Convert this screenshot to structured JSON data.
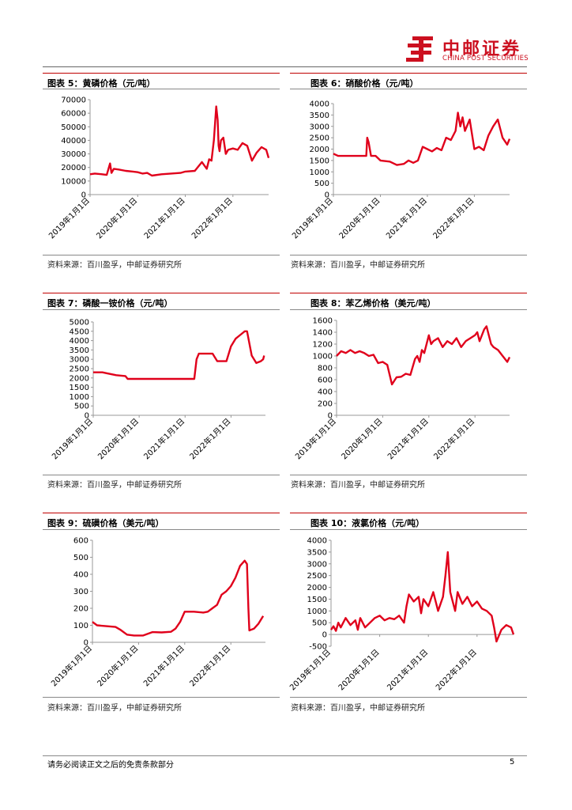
{
  "header": {
    "brand_cn": "中邮证券",
    "brand_en": "CHINA POST SECURITIES"
  },
  "panels": [
    {
      "title": "图表 5：黄磷价格（元/吨）",
      "source": "资料来源：百川盈孚，中邮证券研究所"
    },
    {
      "title": "图表 6：硝酸价格（元/吨）",
      "source": "资料来源：百川盈孚，中邮证券研究所"
    },
    {
      "title": "图表 7：磷酸一铵价格（元/吨）",
      "source": "资料来源：百川盈孚，中邮证券研究所"
    },
    {
      "title": "图表 8：苯乙烯价格（美元/吨）",
      "source": "资料来源：百川盈孚，中邮证券研究所"
    },
    {
      "title": "图表 9：硫磺价格（美元/吨）",
      "source": "资料来源：百川盈孚，中邮证券研究所"
    },
    {
      "title": "图表 10：液氯价格（元/吨）",
      "source": "资料来源：百川盈孚，中邮证券研究所"
    }
  ],
  "chart_data": [
    {
      "type": "line",
      "title": "",
      "color": "#e0001b",
      "ylim": [
        0,
        70000
      ],
      "yticks": [
        0,
        10000,
        20000,
        30000,
        40000,
        50000,
        60000,
        70000
      ],
      "xticks": [
        "2019年1月1日",
        "2020年1月1日",
        "2021年1月1日",
        "2022年1月1日"
      ],
      "xlim": [
        2019.0,
        2022.75
      ],
      "x": [
        2019.0,
        2019.1,
        2019.25,
        2019.35,
        2019.42,
        2019.45,
        2019.5,
        2019.6,
        2019.75,
        2019.9,
        2020.0,
        2020.1,
        2020.2,
        2020.3,
        2020.5,
        2020.7,
        2020.9,
        2021.0,
        2021.2,
        2021.35,
        2021.45,
        2021.5,
        2021.55,
        2021.6,
        2021.65,
        2021.68,
        2021.7,
        2021.72,
        2021.75,
        2021.8,
        2021.85,
        2021.9,
        2022.0,
        2022.1,
        2022.2,
        2022.3,
        2022.4,
        2022.5,
        2022.6,
        2022.7,
        2022.75
      ],
      "values": [
        15000,
        15500,
        15000,
        14500,
        23000,
        16000,
        19000,
        18500,
        17500,
        17000,
        16500,
        15500,
        16000,
        14000,
        15000,
        15500,
        16000,
        17000,
        17500,
        24000,
        19000,
        26000,
        25000,
        40000,
        65000,
        55000,
        36000,
        32000,
        40000,
        42000,
        30000,
        33000,
        34000,
        33000,
        38000,
        36000,
        25000,
        31000,
        35000,
        33000,
        27000
      ]
    },
    {
      "type": "line",
      "title": "",
      "color": "#e0001b",
      "ylim": [
        0,
        4000
      ],
      "yticks": [
        0,
        500,
        1000,
        1500,
        2000,
        2500,
        3000,
        3500,
        4000
      ],
      "xticks": [
        "2019年1月1日",
        "2020年1月1日",
        "2021年1月1日",
        "2022年1月1日"
      ],
      "xlim": [
        2019.0,
        2022.75
      ],
      "x": [
        2019.0,
        2019.1,
        2019.3,
        2019.5,
        2019.7,
        2019.72,
        2019.75,
        2019.8,
        2019.9,
        2020.0,
        2020.2,
        2020.35,
        2020.5,
        2020.6,
        2020.7,
        2020.8,
        2020.9,
        2021.0,
        2021.1,
        2021.2,
        2021.3,
        2021.4,
        2021.5,
        2021.6,
        2021.65,
        2021.7,
        2021.75,
        2021.8,
        2021.9,
        2022.0,
        2022.1,
        2022.2,
        2022.3,
        2022.4,
        2022.5,
        2022.6,
        2022.7,
        2022.75
      ],
      "values": [
        1800,
        1700,
        1700,
        1700,
        1700,
        2500,
        2300,
        1700,
        1700,
        1500,
        1450,
        1300,
        1350,
        1500,
        1400,
        1500,
        2100,
        2000,
        1900,
        2050,
        1950,
        2500,
        2400,
        2800,
        3600,
        3000,
        3400,
        2800,
        3300,
        2000,
        2100,
        1950,
        2600,
        3000,
        3300,
        2500,
        2200,
        2450
      ]
    },
    {
      "type": "line",
      "title": "",
      "color": "#e0001b",
      "ylim": [
        0,
        5000
      ],
      "yticks": [
        0,
        500,
        1000,
        1500,
        2000,
        2500,
        3000,
        3500,
        4000,
        4500,
        5000
      ],
      "xticks": [
        "2019年1月1日",
        "2020年1月1日",
        "2021年1月1日",
        "2022年1月1日"
      ],
      "xlim": [
        2019.0,
        2022.75
      ],
      "x": [
        2019.0,
        2019.2,
        2019.3,
        2019.5,
        2019.7,
        2019.75,
        2019.9,
        2020.0,
        2020.5,
        2020.9,
        2021.0,
        2021.1,
        2021.2,
        2021.25,
        2021.3,
        2021.6,
        2021.7,
        2021.9,
        2022.0,
        2022.1,
        2022.2,
        2022.3,
        2022.35,
        2022.45,
        2022.55,
        2022.65,
        2022.7,
        2022.72
      ],
      "values": [
        2300,
        2300,
        2250,
        2150,
        2100,
        1950,
        1950,
        1950,
        1950,
        1950,
        1950,
        1950,
        1950,
        3000,
        3300,
        3300,
        2900,
        2900,
        3700,
        4100,
        4300,
        4500,
        4500,
        3200,
        2800,
        2900,
        3000,
        3200
      ]
    },
    {
      "type": "line",
      "title": "",
      "color": "#e0001b",
      "ylim": [
        0,
        1600
      ],
      "yticks": [
        0,
        200,
        400,
        600,
        800,
        1000,
        1200,
        1400,
        1600
      ],
      "xticks": [
        "2019年1月1日",
        "2020年1月1日",
        "2021年1月1日",
        "2022年1月1日"
      ],
      "xlim": [
        2019.0,
        2022.75
      ],
      "x": [
        2019.0,
        2019.1,
        2019.2,
        2019.3,
        2019.4,
        2019.5,
        2019.6,
        2019.7,
        2019.8,
        2019.9,
        2020.0,
        2020.1,
        2020.2,
        2020.25,
        2020.3,
        2020.4,
        2020.5,
        2020.6,
        2020.7,
        2020.75,
        2020.8,
        2020.85,
        2020.9,
        2021.0,
        2021.05,
        2021.1,
        2021.2,
        2021.3,
        2021.4,
        2021.5,
        2021.6,
        2021.7,
        2021.8,
        2021.9,
        2022.0,
        2022.05,
        2022.1,
        2022.2,
        2022.25,
        2022.3,
        2022.35,
        2022.4,
        2022.5,
        2022.6,
        2022.7,
        2022.75
      ],
      "values": [
        1000,
        1080,
        1050,
        1100,
        1050,
        1080,
        1050,
        1000,
        1020,
        880,
        900,
        850,
        520,
        580,
        640,
        650,
        700,
        680,
        950,
        1000,
        900,
        1100,
        1050,
        1350,
        1200,
        1250,
        1300,
        1150,
        1250,
        1200,
        1300,
        1150,
        1250,
        1300,
        1350,
        1400,
        1250,
        1450,
        1500,
        1350,
        1200,
        1150,
        1100,
        1000,
        900,
        980
      ]
    },
    {
      "type": "line",
      "title": "",
      "color": "#e0001b",
      "ylim": [
        0,
        600
      ],
      "yticks": [
        0,
        100,
        200,
        300,
        400,
        500,
        600
      ],
      "xticks": [
        "2019年1月1日",
        "2020年1月1日",
        "2021年1月1日",
        "2022年1月1日"
      ],
      "xlim": [
        2019.0,
        2022.75
      ],
      "x": [
        2019.0,
        2019.1,
        2019.3,
        2019.5,
        2019.6,
        2019.75,
        2019.9,
        2020.0,
        2020.1,
        2020.3,
        2020.5,
        2020.7,
        2020.8,
        2020.9,
        2021.0,
        2021.2,
        2021.4,
        2021.5,
        2021.6,
        2021.7,
        2021.8,
        2021.9,
        2022.0,
        2022.1,
        2022.2,
        2022.3,
        2022.35,
        2022.38,
        2022.4,
        2022.5,
        2022.6,
        2022.7
      ],
      "values": [
        120,
        100,
        95,
        90,
        75,
        45,
        40,
        40,
        40,
        60,
        58,
        62,
        80,
        120,
        180,
        180,
        175,
        180,
        200,
        220,
        280,
        300,
        330,
        380,
        450,
        480,
        460,
        200,
        70,
        80,
        110,
        155
      ]
    },
    {
      "type": "line",
      "title": "",
      "color": "#e0001b",
      "ylim": [
        -500,
        4000
      ],
      "yticks": [
        -500,
        0,
        500,
        1000,
        1500,
        2000,
        2500,
        3000,
        3500,
        4000
      ],
      "xticks": [
        "2019年1月1日",
        "2020年1月1日",
        "2021年1月1日",
        "2022年1月1日"
      ],
      "xlim": [
        2019.0,
        2022.75
      ],
      "x": [
        2019.0,
        2019.05,
        2019.1,
        2019.15,
        2019.2,
        2019.3,
        2019.4,
        2019.5,
        2019.55,
        2019.6,
        2019.7,
        2019.8,
        2019.9,
        2020.0,
        2020.1,
        2020.2,
        2020.3,
        2020.4,
        2020.5,
        2020.55,
        2020.6,
        2020.7,
        2020.8,
        2020.85,
        2020.9,
        2021.0,
        2021.1,
        2021.2,
        2021.3,
        2021.35,
        2021.4,
        2021.45,
        2021.5,
        2021.55,
        2021.6,
        2021.7,
        2021.8,
        2021.9,
        2022.0,
        2022.1,
        2022.2,
        2022.3,
        2022.35,
        2022.4,
        2022.5,
        2022.6,
        2022.7,
        2022.75
      ],
      "values": [
        200,
        350,
        150,
        500,
        300,
        700,
        400,
        600,
        200,
        700,
        300,
        500,
        700,
        800,
        600,
        700,
        650,
        800,
        500,
        1200,
        1700,
        1400,
        1600,
        900,
        1500,
        1200,
        1800,
        1000,
        1600,
        2500,
        3500,
        1800,
        1400,
        1000,
        1800,
        1300,
        1600,
        1200,
        1400,
        1100,
        1000,
        800,
        300,
        -300,
        200,
        400,
        300,
        0
      ]
    }
  ],
  "footer": {
    "disclaimer": "请务必阅读正文之后的免责条款部分",
    "page_number": "5"
  }
}
